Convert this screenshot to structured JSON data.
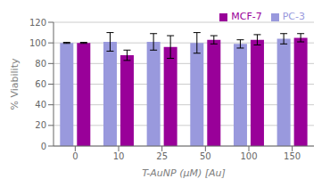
{
  "chart_data": {
    "type": "bar",
    "categories": [
      "0",
      "10",
      "25",
      "50",
      "100",
      "150"
    ],
    "series": [
      {
        "name": "PC-3",
        "color": "#9999dd",
        "values": [
          100,
          101,
          101,
          100,
          99,
          104
        ],
        "errors": [
          0.5,
          9,
          8,
          10,
          4,
          5
        ]
      },
      {
        "name": "MCF-7",
        "color": "#990099",
        "values": [
          100,
          88,
          96,
          103,
          103,
          105
        ],
        "errors": [
          0.5,
          5,
          11,
          4,
          5,
          4
        ]
      }
    ],
    "xlabel": "T-AuNP (μM) [Au]",
    "ylabel": "% Viability",
    "ylim": [
      0,
      120
    ],
    "yticks": [
      0,
      20,
      40,
      60,
      80,
      100,
      120
    ],
    "grid": true,
    "legend": "upper right"
  }
}
